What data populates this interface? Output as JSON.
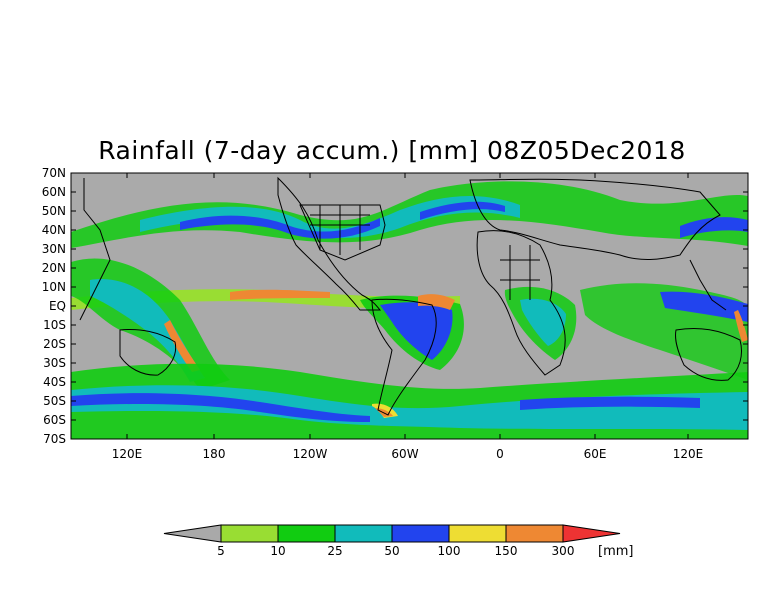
{
  "title": "Rainfall (7-day accum.) [mm] 08Z05Dec2018",
  "map": {
    "lat_labels": [
      "70N",
      "60N",
      "50N",
      "40N",
      "30N",
      "20N",
      "10N",
      "EQ",
      "10S",
      "20S",
      "30S",
      "40S",
      "50S",
      "60S",
      "70S"
    ],
    "lon_labels": [
      "120E",
      "180",
      "120W",
      "60W",
      "0",
      "60E",
      "120E"
    ],
    "background_color": "#aaaaaa"
  },
  "colorbar": {
    "unit_label": "[mm]",
    "thresholds": [
      "5",
      "10",
      "25",
      "50",
      "100",
      "150",
      "300"
    ],
    "colors": [
      "#a9a9a9",
      "#99dd33",
      "#11cc11",
      "#11bbbb",
      "#2244ee",
      "#eedd33",
      "#ee8833",
      "#ee3333"
    ]
  }
}
